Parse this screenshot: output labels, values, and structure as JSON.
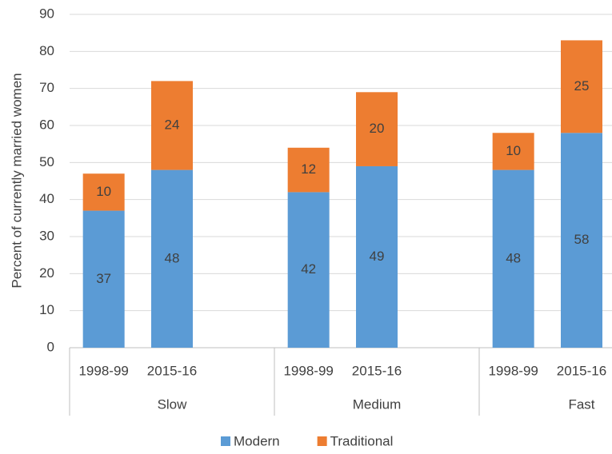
{
  "chart_data": {
    "type": "stacked_bar",
    "y_label": "Percent of currently married women",
    "groups": [
      "Slow",
      "Medium",
      "Fast"
    ],
    "categories": [
      "1998-99",
      "2015-16",
      "1998-99",
      "2015-16",
      "1998-99",
      "2015-16"
    ],
    "series": [
      {
        "name": "Modern",
        "color": "#5b9bd5",
        "values": [
          37,
          48,
          42,
          49,
          48,
          58
        ]
      },
      {
        "name": "Traditional",
        "color": "#ed7d31",
        "values": [
          10,
          24,
          12,
          20,
          10,
          25
        ]
      }
    ],
    "ylim": [
      0,
      90
    ],
    "yticks": [
      0,
      10,
      20,
      30,
      40,
      50,
      60,
      70,
      80,
      90
    ],
    "grid": true,
    "legend": "bottom"
  }
}
